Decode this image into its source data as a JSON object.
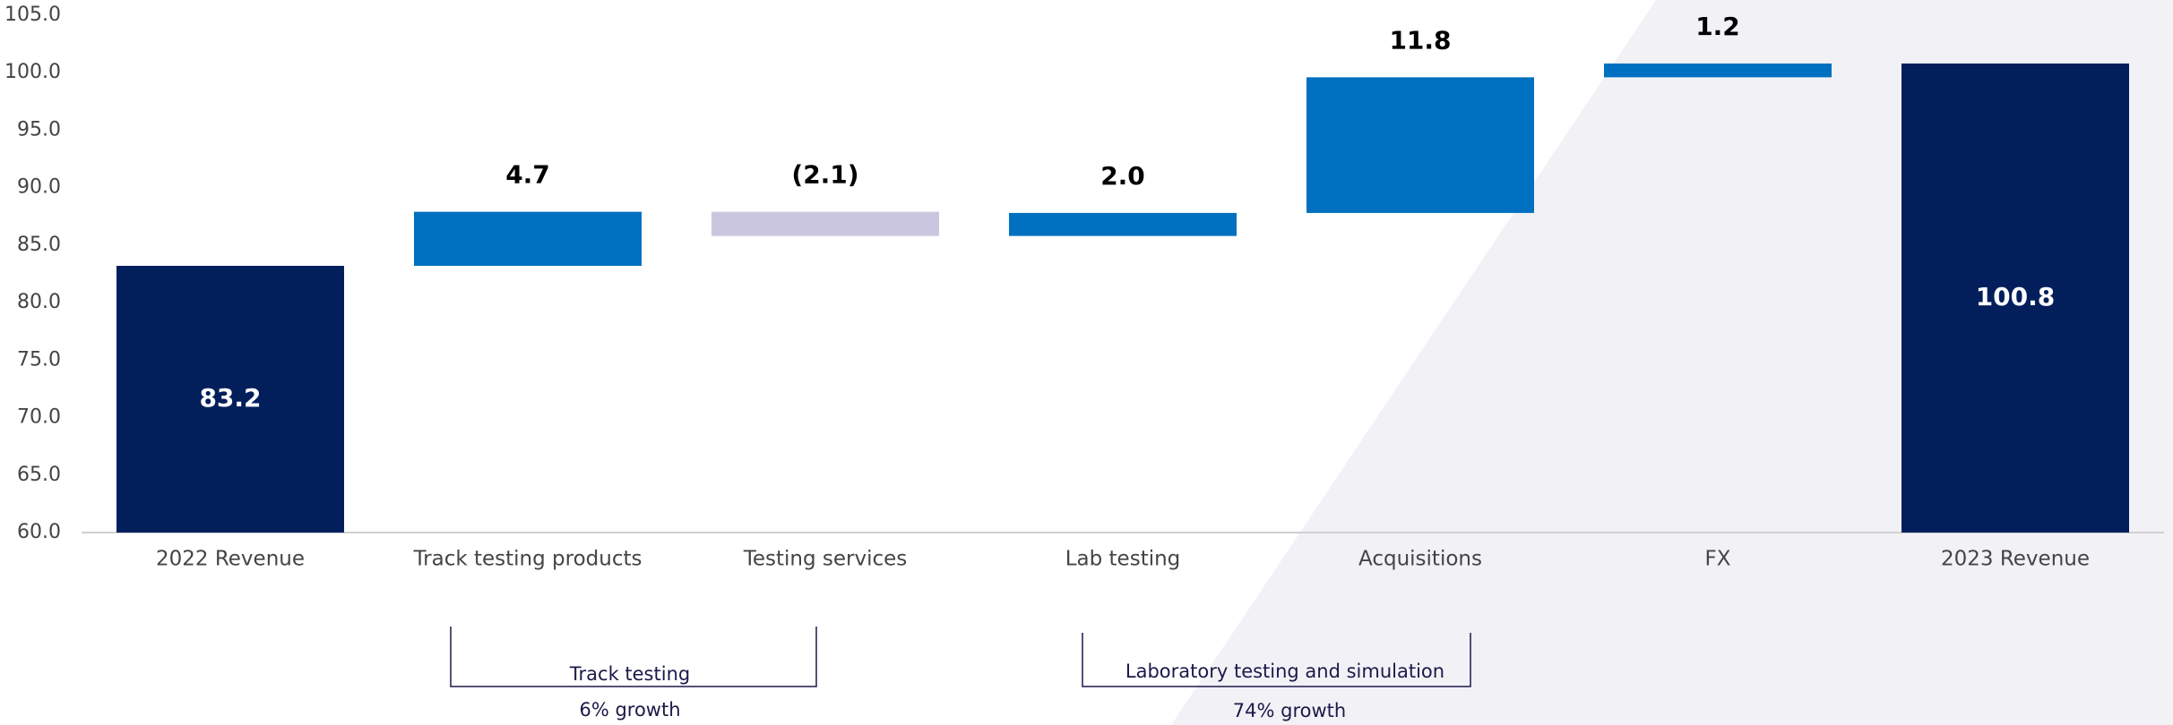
{
  "chart_data": {
    "type": "waterfall",
    "categories": [
      "2022 Revenue",
      "Track testing products",
      "Testing services",
      "Lab testing",
      "Acquisitions",
      "FX",
      "2023 Revenue"
    ],
    "values": [
      83.2,
      4.7,
      -2.1,
      2.0,
      11.8,
      1.2,
      100.8
    ],
    "value_labels": [
      "83.2",
      "4.7",
      "(2.1)",
      "2.0",
      "11.8",
      "1.2",
      "100.8"
    ],
    "measure": [
      "total",
      "relative",
      "relative",
      "relative",
      "relative",
      "relative",
      "total"
    ],
    "colors": [
      "#021f5c",
      "#0070c0",
      "#cbc6e0",
      "#0070c0",
      "#0070c0",
      "#0070c0",
      "#021f5c"
    ],
    "ylim": [
      60,
      105
    ],
    "yticks": [
      {
        "value": 60,
        "label": "60.0"
      },
      {
        "value": 65,
        "label": "65.0"
      },
      {
        "value": 70,
        "label": "70.0"
      },
      {
        "value": 75,
        "label": "75.0"
      },
      {
        "value": 80,
        "label": "80.0"
      },
      {
        "value": 85,
        "label": "85.0"
      },
      {
        "value": 90,
        "label": "90.0"
      },
      {
        "value": 95,
        "label": "95.0"
      },
      {
        "value": 100,
        "label": "100.0"
      },
      {
        "value": 105,
        "label": "105.0"
      }
    ],
    "annotations": [
      {
        "label": "Track testing",
        "note": "6% growth"
      },
      {
        "label": "Laboratory testing and simulation",
        "note": "74% growth"
      }
    ]
  }
}
